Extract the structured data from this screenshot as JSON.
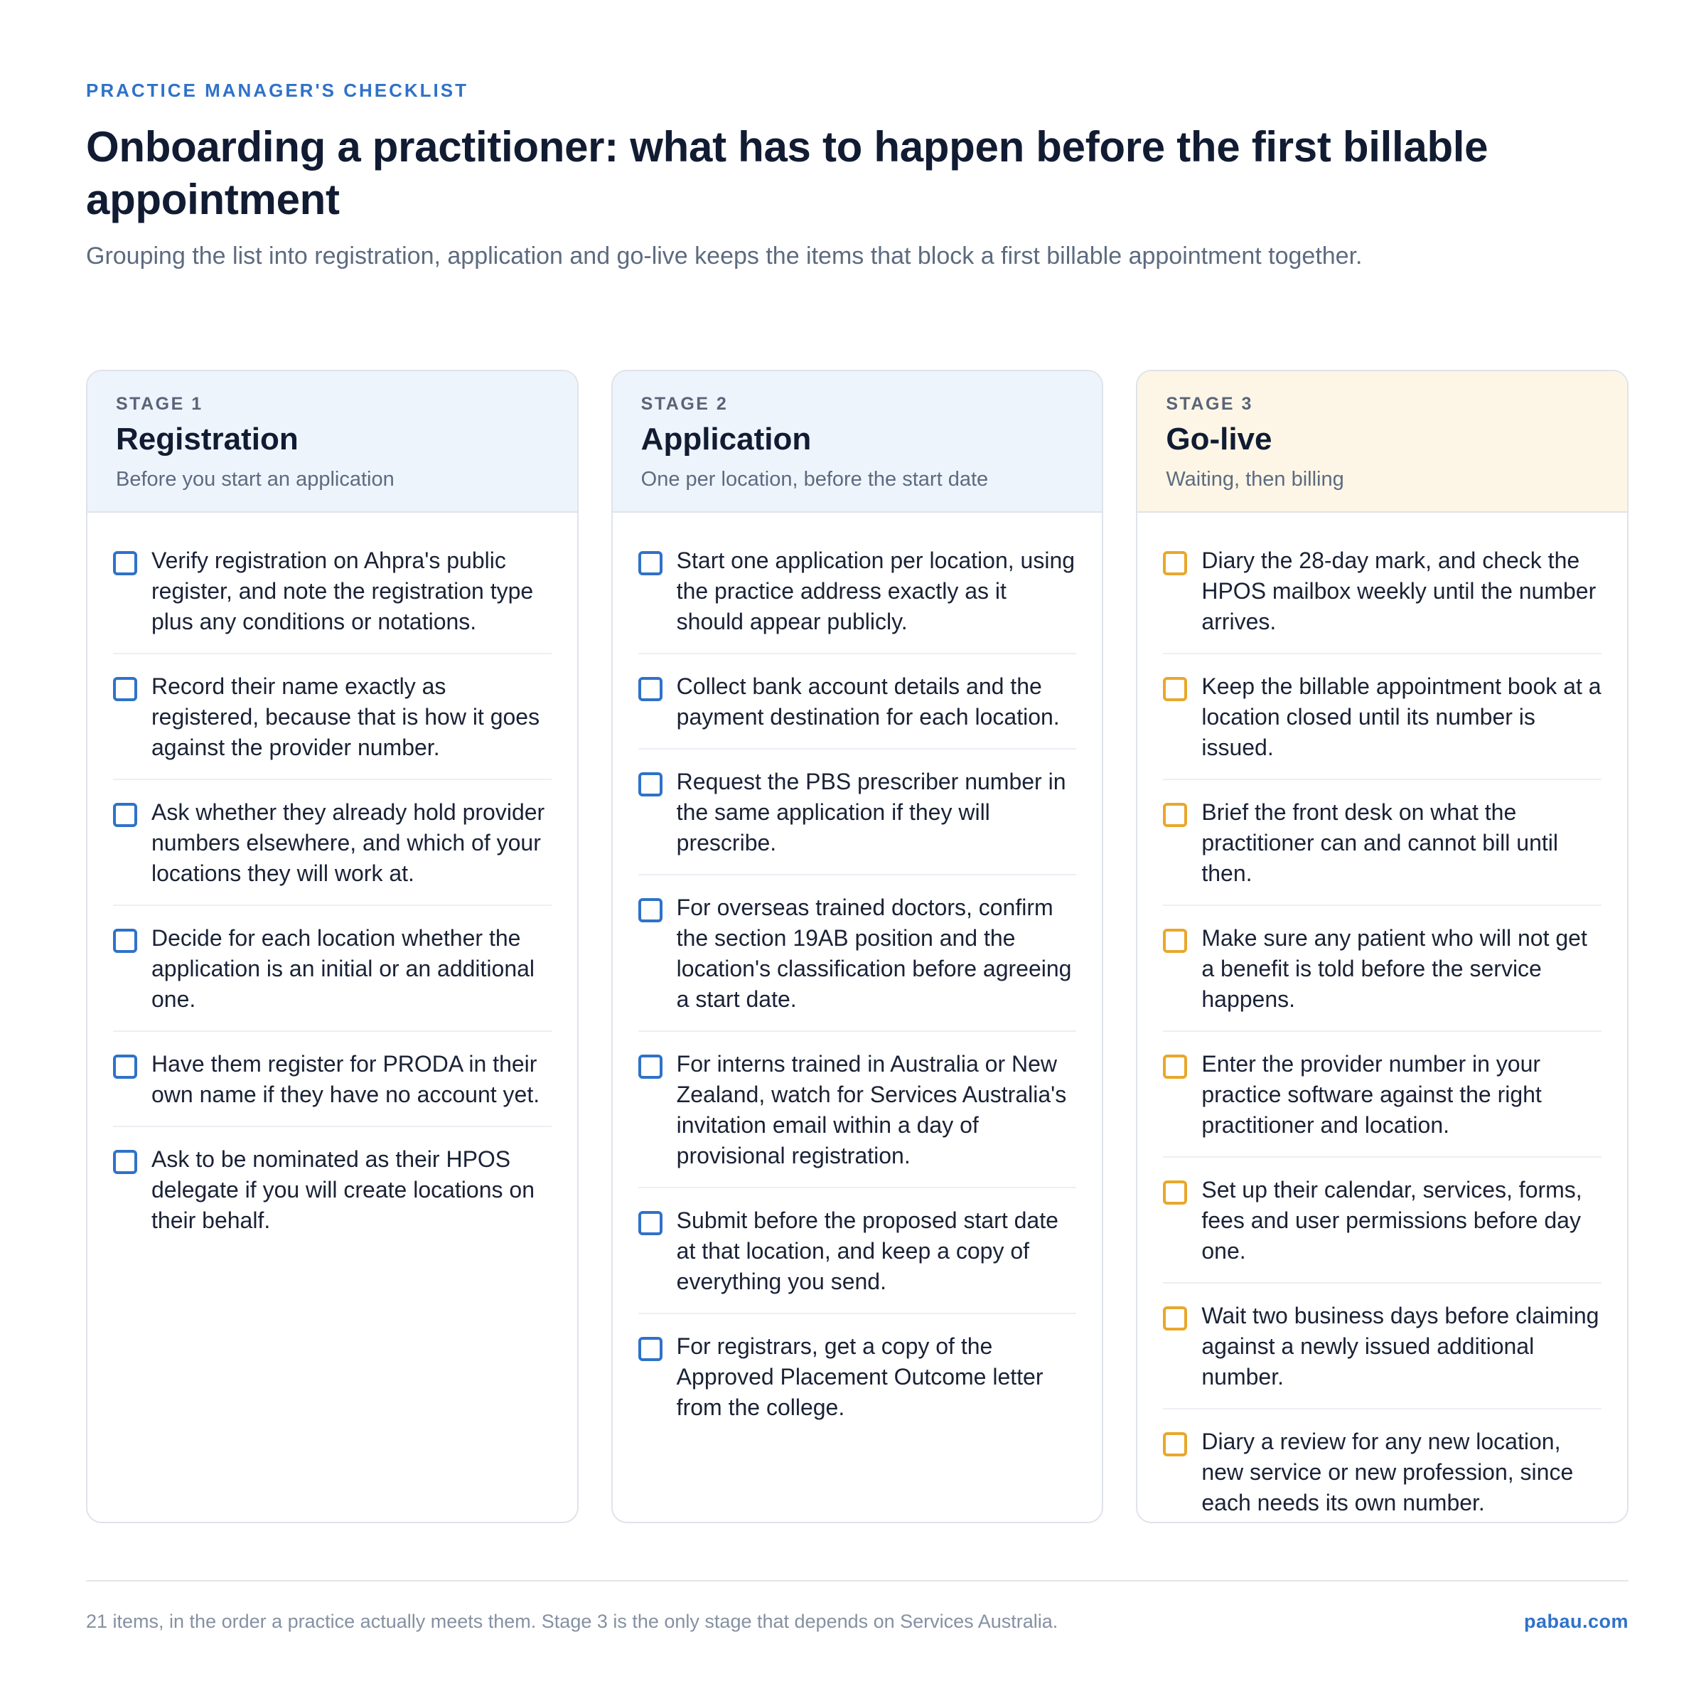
{
  "header": {
    "eyebrow": "PRACTICE MANAGER'S CHECKLIST",
    "title": "Onboarding a practitioner: what has to happen before the first billable appointment",
    "subtitle": "Grouping the list into registration, application and go-live keeps the items that block a first billable appointment together."
  },
  "stages": [
    {
      "number": "STAGE 1",
      "name": "Registration",
      "description": "Before you start an application",
      "accent": "#2f72c9",
      "header_bg": "#eef4fc",
      "checked": false,
      "items": [
        "Verify registration on Ahpra's public register, and note the registration type plus any conditions or notations.",
        "Record their name exactly as registered, because that is how it goes against the provider number.",
        "Ask whether they already hold provider numbers elsewhere, and which of your locations they will work at.",
        "Decide for each location whether the application is an initial or an additional one.",
        "Have them register for PRODA in their own name if they have no account yet.",
        "Ask to be nominated as their HPOS delegate if you will create locations on their behalf."
      ]
    },
    {
      "number": "STAGE 2",
      "name": "Application",
      "description": "One per location, before the start date",
      "accent": "#2f72c9",
      "header_bg": "#eef4fc",
      "checked": false,
      "items": [
        "Start one application per location, using the practice address exactly as it should appear publicly.",
        "Collect bank account details and the payment destination for each location.",
        "Request the PBS prescriber number in the same application if they will prescribe.",
        "For overseas trained doctors, confirm the section 19AB position and the location's classification before agreeing a start date.",
        "For interns trained in Australia or New Zealand, watch for Services Australia's invitation email within a day of provisional registration.",
        "Submit before the proposed start date at that location, and keep a copy of everything you send.",
        "For registrars, get a copy of the Approved Placement Outcome letter from the college."
      ]
    },
    {
      "number": "STAGE 3",
      "name": "Go-live",
      "description": "Waiting, then billing",
      "accent": "#e9a72b",
      "header_bg": "#fdf6e6",
      "checked": false,
      "items": [
        "Diary the 28-day mark, and check the HPOS mailbox weekly until the number arrives.",
        "Keep the billable appointment book at a location closed until its number is issued.",
        "Brief the front desk on what the practitioner can and cannot bill until then.",
        "Make sure any patient who will not get a benefit is told before the service happens.",
        "Enter the provider number in your practice software against the right practitioner and location.",
        "Set up their calendar, services, forms, fees and user permissions before day one.",
        "Wait two business days before claiming against a newly issued additional number.",
        "Diary a review for any new location, new service or new profession, since each needs its own number."
      ]
    }
  ],
  "footer": {
    "note": "21 items, in the order a practice actually meets them. Stage 3 is the only stage that depends on Services Australia.",
    "brand": "pabau.com"
  }
}
